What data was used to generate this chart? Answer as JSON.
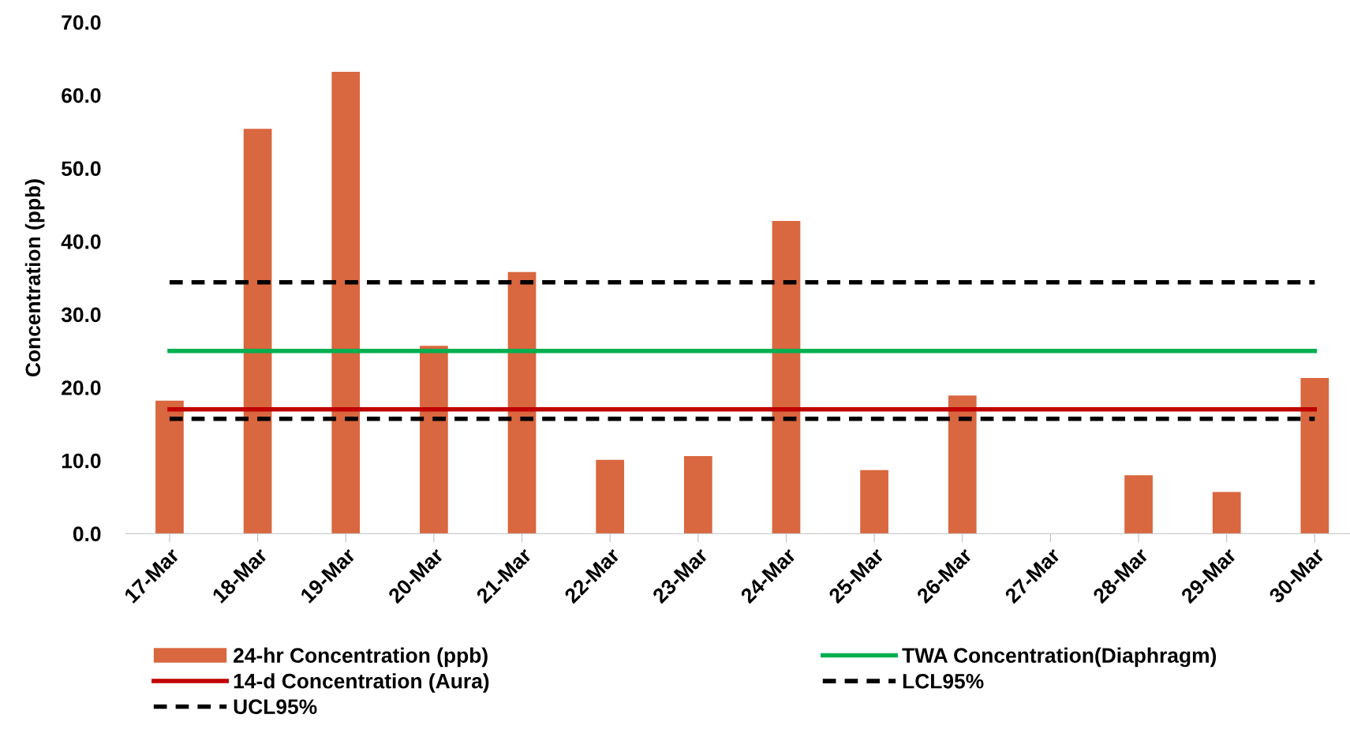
{
  "chart_data": {
    "type": "bar",
    "ylabel": "Concentration (ppb)",
    "categories": [
      "17-Mar",
      "18-Mar",
      "19-Mar",
      "20-Mar",
      "21-Mar",
      "22-Mar",
      "23-Mar",
      "24-Mar",
      "25-Mar",
      "26-Mar",
      "27-Mar",
      "28-Mar",
      "29-Mar",
      "30-Mar"
    ],
    "series": [
      {
        "name": "24-hr Concentration (ppb)",
        "color": "#d9673f",
        "values": [
          18.2,
          55.4,
          63.2,
          25.7,
          35.8,
          10.1,
          10.6,
          42.8,
          8.7,
          18.9,
          null,
          8.0,
          5.7,
          21.3
        ]
      },
      {
        "name": "TWA Concentration(Diaphragm)",
        "type": "line",
        "color": "#00b050",
        "line_style": "solid",
        "values": [
          25.0,
          25.0,
          25.0,
          25.0,
          25.0,
          25.0,
          25.0,
          25.0,
          25.0,
          25.0,
          25.0,
          25.0,
          25.0,
          25.0
        ]
      },
      {
        "name": "14-d Concentration (Aura)",
        "type": "line",
        "color": "#c00000",
        "line_style": "solid",
        "values": [
          17.0,
          17.0,
          17.0,
          17.0,
          17.0,
          17.0,
          17.0,
          17.0,
          17.0,
          17.0,
          17.0,
          17.0,
          17.0,
          17.0
        ]
      },
      {
        "name": "LCL95%",
        "type": "line",
        "color": "#000000",
        "line_style": "dashed",
        "values": [
          15.7,
          15.7,
          15.7,
          15.7,
          15.7,
          15.7,
          15.7,
          15.7,
          15.7,
          15.7,
          15.7,
          15.7,
          15.7,
          15.7
        ]
      },
      {
        "name": "UCL95%",
        "type": "line",
        "color": "#000000",
        "line_style": "dashed",
        "values": [
          34.4,
          34.4,
          34.4,
          34.4,
          34.4,
          34.4,
          34.4,
          34.4,
          34.4,
          34.4,
          34.4,
          34.4,
          34.4,
          34.4
        ]
      }
    ],
    "ylim": [
      0,
      70
    ],
    "yticks": [
      {
        "value": 0,
        "label": "0.0"
      },
      {
        "value": 10,
        "label": "10.0"
      },
      {
        "value": 20,
        "label": "20.0"
      },
      {
        "value": 30,
        "label": "30.0"
      },
      {
        "value": 40,
        "label": "40.0"
      },
      {
        "value": 50,
        "label": "50.0"
      },
      {
        "value": 60,
        "label": "60.0"
      },
      {
        "value": 70,
        "label": "70.0"
      }
    ],
    "grid": false,
    "legend": "bottom"
  }
}
